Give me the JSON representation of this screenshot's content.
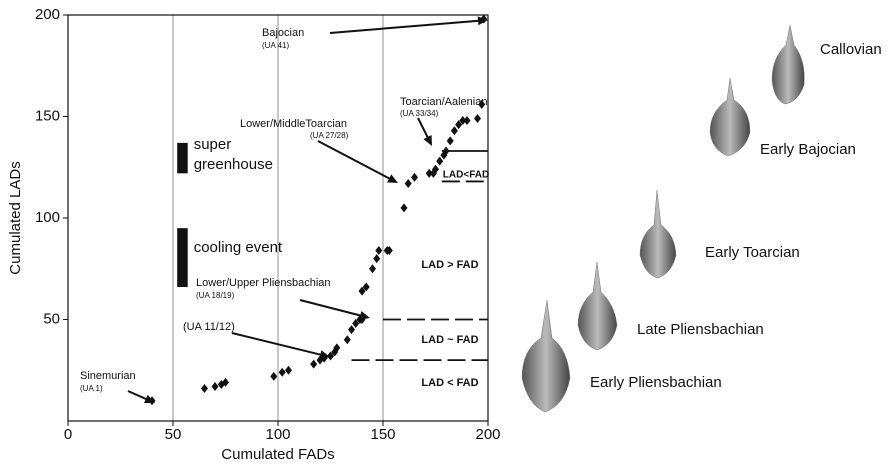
{
  "chart_data": {
    "type": "scatter",
    "x_label": "Cumulated FADs",
    "y_label": "Cumulated LADs",
    "xlim": [
      0,
      200
    ],
    "ylim": [
      0,
      200
    ],
    "xticks": [
      0,
      50,
      100,
      150,
      200
    ],
    "yticks": [
      50,
      100,
      150,
      200
    ],
    "grid": true,
    "color": "#111111",
    "x": [
      40,
      65,
      70,
      73,
      75,
      98,
      102,
      105,
      117,
      120,
      122,
      125,
      127,
      128,
      133,
      135,
      137,
      139,
      140,
      140,
      142,
      145,
      147,
      148,
      152,
      153,
      160,
      162,
      165,
      172,
      174,
      175,
      177,
      179,
      180,
      182,
      184,
      186,
      188,
      190,
      195,
      197,
      198
    ],
    "values": [
      10,
      16,
      17,
      18,
      19,
      22,
      24,
      25,
      28,
      30,
      31,
      32,
      34,
      36,
      40,
      45,
      48,
      50,
      50,
      64,
      66,
      75,
      80,
      84,
      84,
      84,
      105,
      117,
      120,
      122,
      122,
      124,
      128,
      131,
      133,
      138,
      143,
      146,
      148,
      148,
      149,
      156,
      198
    ],
    "reference_lines": [
      {
        "y": 30,
        "x": [
          135,
          200
        ],
        "dashed": true
      },
      {
        "y": 50,
        "x": [
          150,
          200
        ],
        "dashed": true
      },
      {
        "y": 118,
        "x": [
          178,
          200
        ],
        "dashed": true
      },
      {
        "y": 133,
        "x": [
          178,
          200
        ],
        "dashed": false
      }
    ],
    "events": [
      {
        "lines": [
          "super",
          "greenhouse"
        ],
        "x": [
          52,
          57
        ],
        "y": [
          122,
          137
        ]
      },
      {
        "lines": [
          "cooling event"
        ],
        "x": [
          52,
          57
        ],
        "y": [
          66,
          95
        ]
      }
    ],
    "annotations": [
      {
        "label": "Bajocian",
        "sublabel": "(UA 41)"
      },
      {
        "label": "Toarcian/Aalenian",
        "sublabel": "(UA 33/34)"
      },
      {
        "label": "Lower/MiddleToarcian",
        "sublabel": "(UA 27/28)"
      },
      {
        "label": "Lower/Upper Pliensbachian",
        "sublabel": "(UA 18/19)"
      },
      {
        "label": "(UA 11/12)"
      },
      {
        "label": "Sinemurian",
        "sublabel": "(UA 1)"
      }
    ],
    "region_labels": [
      "LAD<FAD",
      "LAD > FAD",
      "LAD ~ FAD",
      "LAD < FAD"
    ]
  },
  "fossils": [
    "Callovian",
    "Early Bajocian",
    "Early Toarcian",
    "Late Pliensbachian",
    "Early Pliensbachian"
  ]
}
